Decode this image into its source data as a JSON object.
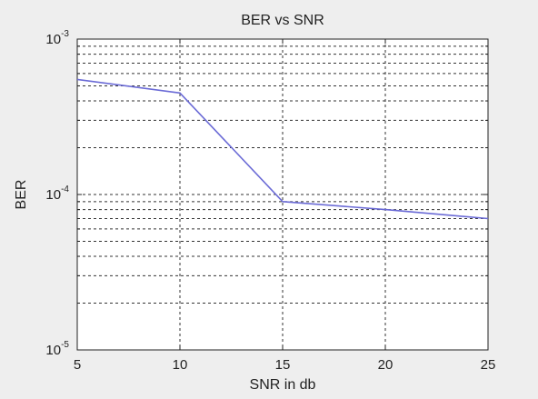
{
  "chart_data": {
    "type": "line",
    "title": "BER vs SNR",
    "xlabel": "SNR in db",
    "ylabel": "BER",
    "x_ticks": [
      "5",
      "10",
      "15",
      "20",
      "25"
    ],
    "y_tick_labels": [
      {
        "base": "10",
        "exp": "-3",
        "value": 0.001
      },
      {
        "base": "10",
        "exp": "-4",
        "value": 0.0001
      },
      {
        "base": "10",
        "exp": "-5",
        "value": 1e-05
      }
    ],
    "xlim": [
      5,
      25
    ],
    "ylim": [
      1e-05,
      0.001
    ],
    "yscale": "log",
    "grid": true,
    "series": [
      {
        "x": [
          5,
          10,
          15,
          20,
          25
        ],
        "y": [
          0.00055,
          0.00045,
          9e-05,
          8e-05,
          7e-05
        ],
        "color": "#6b6bd6"
      }
    ],
    "colors": {
      "background": "#eeeeee",
      "plot_area": "#ffffff",
      "axes": "#222222",
      "grid": "#333333"
    }
  }
}
